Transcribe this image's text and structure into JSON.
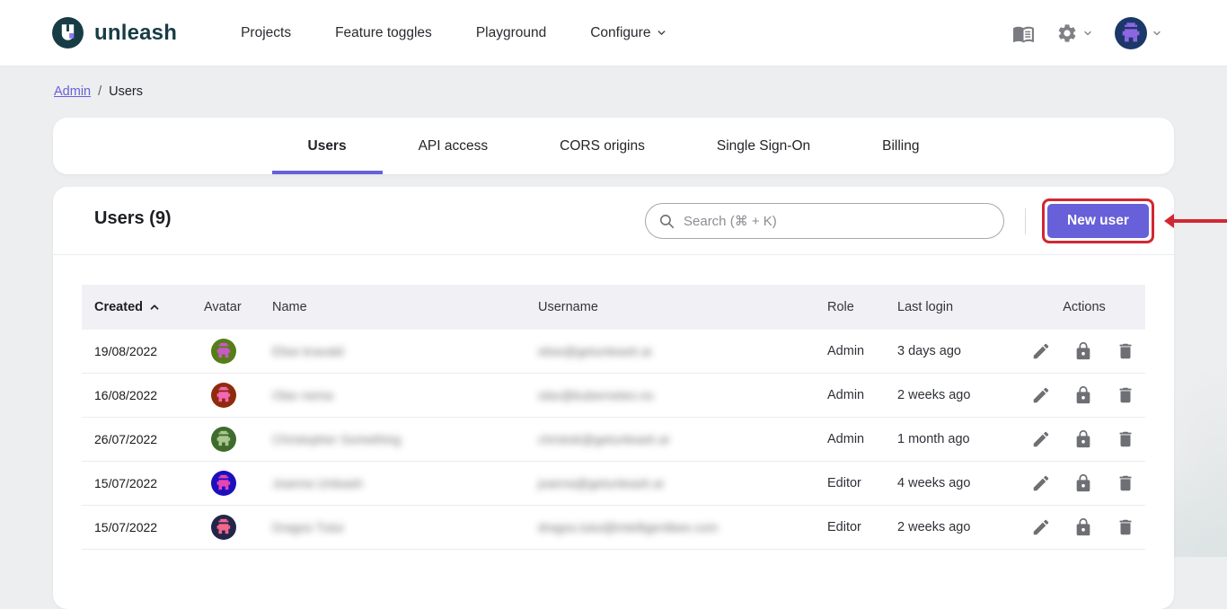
{
  "header": {
    "logo_text": "unleash",
    "nav": [
      {
        "label": "Projects",
        "dropdown": false
      },
      {
        "label": "Feature toggles",
        "dropdown": false
      },
      {
        "label": "Playground",
        "dropdown": false
      },
      {
        "label": "Configure",
        "dropdown": true
      }
    ],
    "avatar": {
      "avatar_bg": "#1c3769",
      "avatar_fg": "#8d66e3"
    }
  },
  "breadcrumb": {
    "link": "Admin",
    "separator": "/",
    "current": "Users"
  },
  "tabs": [
    {
      "label": "Users"
    },
    {
      "label": "API access"
    },
    {
      "label": "CORS origins"
    },
    {
      "label": "Single Sign-On"
    },
    {
      "label": "Billing"
    }
  ],
  "active_tab": "Users",
  "users_panel": {
    "title": "Users (9)",
    "search_placeholder": "Search (⌘ + K)",
    "new_user_button": "New user"
  },
  "annotation": {
    "type": "red-box-with-arrow",
    "target": "New user",
    "color": "#d22733"
  },
  "table": {
    "columns": [
      "Created",
      "Avatar",
      "Name",
      "Username",
      "Role",
      "Last login",
      "Actions"
    ],
    "sort": {
      "column": "Created",
      "direction": "asc"
    },
    "rows": [
      {
        "created": "19/08/2022",
        "avatar_bg": "#567d18",
        "avatar_fg": "#c75bc3",
        "name_blurred": "Elise kravald",
        "username_blurred": "elise@getunleash.ai",
        "role": "Admin",
        "last_login": "3 days ago"
      },
      {
        "created": "16/08/2022",
        "avatar_bg": "#8f2a0a",
        "avatar_fg": "#f268b6",
        "name_blurred": "Olav nema",
        "username_blurred": "olav@kubernetes.no",
        "role": "Admin",
        "last_login": "2 weeks ago"
      },
      {
        "created": "26/07/2022",
        "avatar_bg": "#3f6b2c",
        "avatar_fg": "#a9c88f",
        "name_blurred": "Christopher Something",
        "username_blurred": "christok@getunleash.ai",
        "role": "Admin",
        "last_login": "1 month ago"
      },
      {
        "created": "15/07/2022",
        "avatar_bg": "#1c0fbe",
        "avatar_fg": "#e546b4",
        "name_blurred": "Joanna Unleash",
        "username_blurred": "joanna@getunleash.ai",
        "role": "Editor",
        "last_login": "4 weeks ago"
      },
      {
        "created": "15/07/2022",
        "avatar_bg": "#232649",
        "avatar_fg": "#f2688c",
        "name_blurred": "Dragos Tutui",
        "username_blurred": "dragos.tutui@intelligentbee.com",
        "role": "Editor",
        "last_login": "2 weeks ago"
      }
    ]
  },
  "colors": {
    "accent_purple": "#6760d8",
    "annotation_red": "#d22733",
    "logo_teal": "#173c45"
  }
}
